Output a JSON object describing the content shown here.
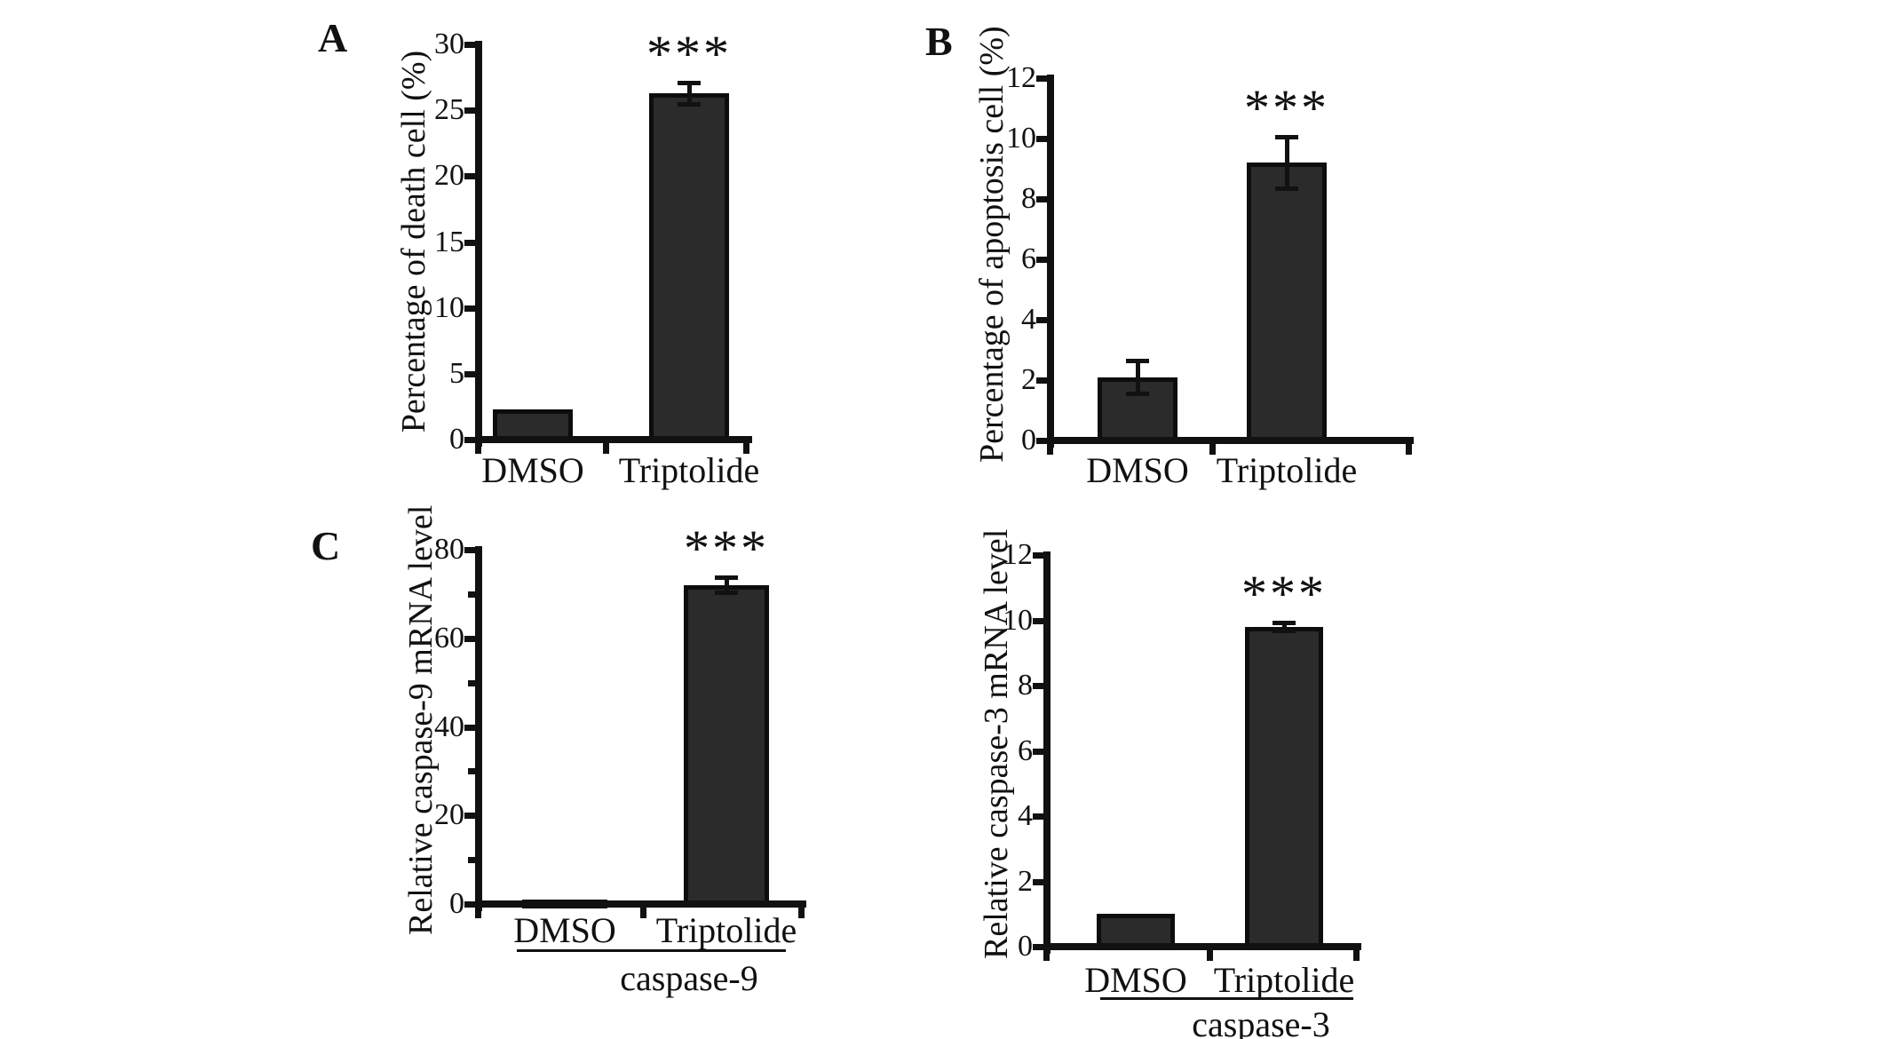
{
  "figure": {
    "background": "#ffffff",
    "bar_fill_color": "#2b2b2b",
    "bar_border_color": "#0d0d0d",
    "axis_color": "#111111",
    "significance_marker": "***"
  },
  "panels": [
    {
      "label": "A"
    },
    {
      "label": "B"
    },
    {
      "label": "C"
    }
  ],
  "chart_data": [
    {
      "type": "bar",
      "panel": "A",
      "title": "",
      "ylabel": "Percentage of death cell (%)",
      "xlabel": "",
      "categories": [
        "DMSO",
        "Triptolide"
      ],
      "values": [
        2.3,
        26.3
      ],
      "errors": [
        0,
        0.8
      ],
      "significance": [
        "",
        "***"
      ],
      "ylim": [
        0,
        30
      ],
      "yticks": [
        0,
        5,
        10,
        15,
        20,
        25,
        30
      ],
      "minor_yticks": [],
      "grid": false,
      "legend": null,
      "group_label": null
    },
    {
      "type": "bar",
      "panel": "B",
      "title": "",
      "ylabel": "Percentage of apoptosis cell (%)",
      "xlabel": "",
      "categories": [
        "DMSO",
        "Triptolide"
      ],
      "values": [
        2.1,
        9.2
      ],
      "errors": [
        0.55,
        0.85
      ],
      "significance": [
        "",
        "***"
      ],
      "ylim": [
        0,
        12
      ],
      "yticks": [
        0,
        2,
        4,
        6,
        8,
        10,
        12
      ],
      "minor_yticks": [],
      "grid": false,
      "legend": null,
      "group_label": null
    },
    {
      "type": "bar",
      "panel": "C",
      "title": "",
      "ylabel": "Relative caspase-9 mRNA level",
      "xlabel": "",
      "categories": [
        "DMSO",
        "Triptolide"
      ],
      "values": [
        1,
        72
      ],
      "errors": [
        0,
        1.7
      ],
      "significance": [
        "",
        "***"
      ],
      "ylim": [
        0,
        80
      ],
      "yticks": [
        0,
        20,
        40,
        60,
        80
      ],
      "minor_yticks": [
        10,
        30,
        50,
        70
      ],
      "grid": false,
      "legend": null,
      "group_label": "caspase-9"
    },
    {
      "type": "bar",
      "panel": "C",
      "title": "",
      "ylabel": "Relative caspase-3 mRNA level",
      "xlabel": "",
      "categories": [
        "DMSO",
        "Triptolide"
      ],
      "values": [
        1,
        9.8
      ],
      "errors": [
        0,
        0.12
      ],
      "significance": [
        "",
        "***"
      ],
      "ylim": [
        0,
        12
      ],
      "yticks": [
        0,
        2,
        4,
        6,
        8,
        10,
        12
      ],
      "minor_yticks": [],
      "grid": false,
      "legend": null,
      "group_label": "caspase-3"
    }
  ]
}
